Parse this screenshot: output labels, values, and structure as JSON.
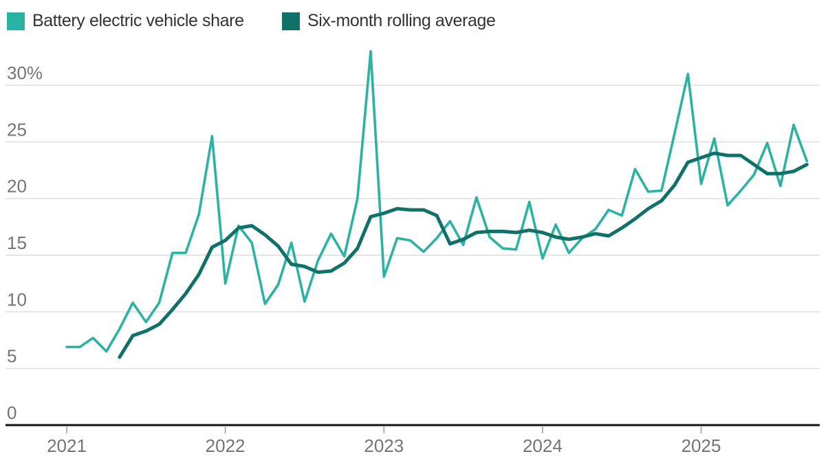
{
  "legend": {
    "items": [
      {
        "label": "Battery electric vehicle share",
        "color": "#2ab3a3"
      },
      {
        "label": "Six-month rolling average",
        "color": "#0f7167"
      }
    ]
  },
  "chart_data": {
    "type": "line",
    "title": "",
    "unit": "percent",
    "grid": true,
    "legend_position": "top-left",
    "x_axis": {
      "tick_labels": [
        "2021",
        "2022",
        "2023",
        "2024",
        "2025"
      ],
      "tick_months": "January of each year"
    },
    "y_axis": {
      "tick_labels": [
        "30%",
        "25",
        "20",
        "15",
        "10",
        "5",
        "0"
      ],
      "tick_values": [
        30,
        25,
        20,
        15,
        10,
        5,
        0
      ],
      "range": [
        0,
        33.5
      ]
    },
    "colors": {
      "bev_line": "#2ab3a3",
      "rolling_line": "#0f7167",
      "gridline": "#dcdcdc",
      "axis_line": "#121212",
      "tick_mark": "#999999",
      "axis_label_text": "#747474",
      "legend_text": "#333333"
    },
    "series": [
      {
        "name": "Battery electric vehicle share",
        "color": "#2ab3a3",
        "start": "2021-01",
        "frequency": "monthly",
        "values": [
          6.9,
          6.9,
          7.7,
          6.5,
          8.5,
          10.8,
          9.1,
          10.8,
          15.2,
          15.2,
          18.6,
          25.5,
          12.5,
          17.6,
          16.1,
          10.7,
          12.4,
          16.1,
          10.9,
          14.5,
          16.9,
          14.9,
          20.0,
          33.0,
          13.1,
          16.5,
          16.3,
          15.3,
          16.5,
          18.0,
          15.9,
          20.1,
          16.6,
          15.6,
          15.5,
          19.7,
          14.7,
          17.7,
          15.2,
          16.5,
          17.3,
          19.0,
          18.5,
          22.6,
          20.6,
          20.7,
          25.8,
          31.0,
          21.3,
          25.3,
          19.4,
          20.7,
          22.1,
          24.9,
          21.1,
          26.5,
          23.3
        ]
      },
      {
        "name": "Six-month rolling average",
        "color": "#0f7167",
        "start": "2021-05",
        "frequency": "monthly",
        "values": [
          6.0,
          7.9,
          8.3,
          8.9,
          10.2,
          11.6,
          13.3,
          15.7,
          16.3,
          17.4,
          17.6,
          16.8,
          15.8,
          14.2,
          14.0,
          13.5,
          13.6,
          14.3,
          15.6,
          18.4,
          18.7,
          19.1,
          19.0,
          19.0,
          18.5,
          16.0,
          16.4,
          17.0,
          17.1,
          17.1,
          17.0,
          17.2,
          17.0,
          16.6,
          16.4,
          16.6,
          16.9,
          16.7,
          17.4,
          18.2,
          19.1,
          19.8,
          21.2,
          23.2,
          23.6,
          24.0,
          23.8,
          23.8,
          23.0,
          22.2,
          22.2,
          22.4,
          23.0
        ]
      }
    ]
  }
}
